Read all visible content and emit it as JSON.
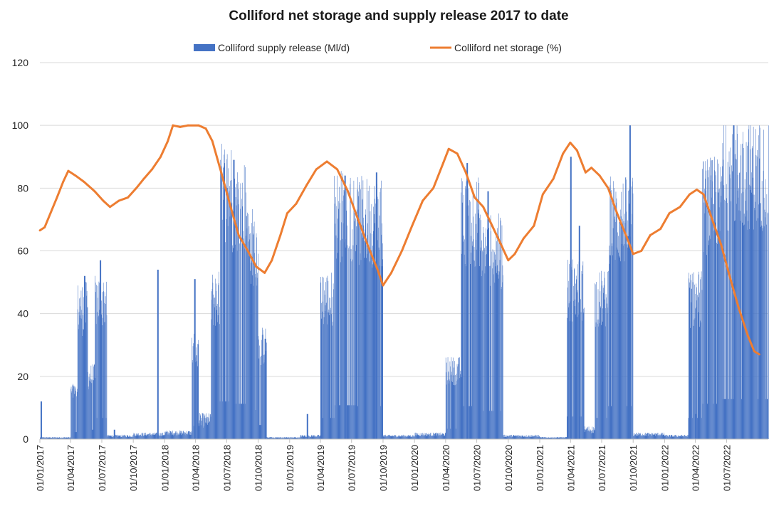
{
  "chart_data": {
    "type": "bar+line",
    "title": "Colliford net storage and supply release 2017 to date",
    "legend": {
      "placement": "top-center",
      "entries": [
        "Colliford supply release (Ml/d)",
        "Colliford net storage (%)"
      ]
    },
    "ylim": [
      0,
      120
    ],
    "y_ticks": [
      "0",
      "20",
      "40",
      "60",
      "80",
      "100",
      "120"
    ],
    "x_range": [
      "2017-01-01",
      "2022-10-31"
    ],
    "x_tick_labels": [
      "01/01/2017",
      "01/04/2017",
      "01/07/2017",
      "01/10/2017",
      "01/01/2018",
      "01/04/2018",
      "01/07/2018",
      "01/10/2018",
      "01/01/2019",
      "01/04/2019",
      "01/07/2019",
      "01/10/2019",
      "01/01/2020",
      "01/04/2020",
      "01/07/2020",
      "01/10/2020",
      "01/01/2021",
      "01/04/2021",
      "01/07/2021",
      "01/10/2021",
      "01/01/2022",
      "01/04/2022",
      "01/07/2022"
    ],
    "grid": true,
    "colors": {
      "release": "#4472c4",
      "storage": "#ed7d31"
    },
    "series": [
      {
        "name": "Colliford supply release (Ml/d)",
        "kind": "bar",
        "periods": [
          {
            "start": "2017-01-01",
            "end": "2017-03-31",
            "value": 0.5
          },
          {
            "start": "2017-04-01",
            "end": "2017-04-20",
            "value": 15
          },
          {
            "start": "2017-04-21",
            "end": "2017-05-20",
            "value": 42
          },
          {
            "start": "2017-05-21",
            "end": "2017-06-10",
            "value": 20
          },
          {
            "start": "2017-06-11",
            "end": "2017-07-15",
            "value": 45
          },
          {
            "start": "2017-07-16",
            "end": "2017-09-30",
            "value": 1
          },
          {
            "start": "2017-10-01",
            "end": "2017-12-31",
            "value": 1.5
          },
          {
            "start": "2018-01-01",
            "end": "2018-03-20",
            "value": 2
          },
          {
            "start": "2018-03-21",
            "end": "2018-04-10",
            "value": 28
          },
          {
            "start": "2018-04-11",
            "end": "2018-05-15",
            "value": 6
          },
          {
            "start": "2018-05-16",
            "end": "2018-06-10",
            "value": 45
          },
          {
            "start": "2018-06-11",
            "end": "2018-07-15",
            "value": 80
          },
          {
            "start": "2018-07-16",
            "end": "2018-08-31",
            "value": 75
          },
          {
            "start": "2018-09-01",
            "end": "2018-09-30",
            "value": 62
          },
          {
            "start": "2018-10-01",
            "end": "2018-10-25",
            "value": 30
          },
          {
            "start": "2018-10-26",
            "end": "2019-01-31",
            "value": 0.5
          },
          {
            "start": "2019-02-01",
            "end": "2019-03-31",
            "value": 1
          },
          {
            "start": "2019-04-01",
            "end": "2019-05-10",
            "value": 45
          },
          {
            "start": "2019-05-11",
            "end": "2019-07-15",
            "value": 72
          },
          {
            "start": "2019-07-16",
            "end": "2019-09-30",
            "value": 70
          },
          {
            "start": "2019-10-01",
            "end": "2019-12-31",
            "value": 1
          },
          {
            "start": "2020-01-01",
            "end": "2020-03-31",
            "value": 1.5
          },
          {
            "start": "2020-04-01",
            "end": "2020-05-15",
            "value": 22
          },
          {
            "start": "2020-05-16",
            "end": "2020-07-10",
            "value": 70
          },
          {
            "start": "2020-07-11",
            "end": "2020-09-15",
            "value": 60
          },
          {
            "start": "2020-09-16",
            "end": "2020-12-31",
            "value": 1
          },
          {
            "start": "2021-01-01",
            "end": "2021-03-20",
            "value": 0.5
          },
          {
            "start": "2021-03-21",
            "end": "2021-05-10",
            "value": 48
          },
          {
            "start": "2021-05-11",
            "end": "2021-06-10",
            "value": 3
          },
          {
            "start": "2021-06-11",
            "end": "2021-07-20",
            "value": 45
          },
          {
            "start": "2021-07-21",
            "end": "2021-09-30",
            "value": 70
          },
          {
            "start": "2021-10-01",
            "end": "2021-12-31",
            "value": 1.5
          },
          {
            "start": "2022-01-01",
            "end": "2022-03-10",
            "value": 1
          },
          {
            "start": "2022-03-11",
            "end": "2022-04-20",
            "value": 45
          },
          {
            "start": "2022-04-21",
            "end": "2022-06-15",
            "value": 75
          },
          {
            "start": "2022-06-16",
            "end": "2022-10-31",
            "value": 85
          }
        ],
        "spikes": [
          {
            "date": "2017-01-03",
            "value": 12
          },
          {
            "date": "2017-05-10",
            "value": 52
          },
          {
            "date": "2017-06-25",
            "value": 57
          },
          {
            "date": "2017-08-05",
            "value": 3
          },
          {
            "date": "2017-12-10",
            "value": 54
          },
          {
            "date": "2018-03-28",
            "value": 51
          },
          {
            "date": "2018-07-20",
            "value": 89
          },
          {
            "date": "2018-10-20",
            "value": 32
          },
          {
            "date": "2019-02-20",
            "value": 8
          },
          {
            "date": "2019-06-10",
            "value": 84
          },
          {
            "date": "2019-09-10",
            "value": 85
          },
          {
            "date": "2020-06-01",
            "value": 88
          },
          {
            "date": "2020-08-01",
            "value": 79
          },
          {
            "date": "2021-03-31",
            "value": 90
          },
          {
            "date": "2021-04-25",
            "value": 68
          },
          {
            "date": "2021-09-20",
            "value": 100
          },
          {
            "date": "2022-03-31",
            "value": 8
          },
          {
            "date": "2022-07-20",
            "value": 100
          }
        ]
      },
      {
        "name": "Colliford net storage (%)",
        "kind": "line",
        "points": [
          {
            "x": "2017-01-01",
            "y": 66.5
          },
          {
            "x": "2017-01-15",
            "y": 67.5
          },
          {
            "x": "2017-02-01",
            "y": 72
          },
          {
            "x": "2017-02-20",
            "y": 77
          },
          {
            "x": "2017-03-10",
            "y": 82
          },
          {
            "x": "2017-03-25",
            "y": 85.5
          },
          {
            "x": "2017-04-15",
            "y": 84
          },
          {
            "x": "2017-05-10",
            "y": 82
          },
          {
            "x": "2017-06-10",
            "y": 79
          },
          {
            "x": "2017-07-05",
            "y": 76
          },
          {
            "x": "2017-07-25",
            "y": 74
          },
          {
            "x": "2017-08-20",
            "y": 76
          },
          {
            "x": "2017-09-15",
            "y": 77
          },
          {
            "x": "2017-10-10",
            "y": 80
          },
          {
            "x": "2017-11-01",
            "y": 83
          },
          {
            "x": "2017-11-25",
            "y": 86
          },
          {
            "x": "2017-12-20",
            "y": 90
          },
          {
            "x": "2018-01-10",
            "y": 95
          },
          {
            "x": "2018-01-25",
            "y": 100
          },
          {
            "x": "2018-02-15",
            "y": 99.5
          },
          {
            "x": "2018-03-10",
            "y": 100
          },
          {
            "x": "2018-04-10",
            "y": 100
          },
          {
            "x": "2018-05-01",
            "y": 99
          },
          {
            "x": "2018-05-20",
            "y": 95
          },
          {
            "x": "2018-06-15",
            "y": 85
          },
          {
            "x": "2018-07-10",
            "y": 75
          },
          {
            "x": "2018-08-05",
            "y": 65
          },
          {
            "x": "2018-09-01",
            "y": 60
          },
          {
            "x": "2018-09-25",
            "y": 55
          },
          {
            "x": "2018-10-20",
            "y": 53
          },
          {
            "x": "2018-11-10",
            "y": 57
          },
          {
            "x": "2018-12-05",
            "y": 65
          },
          {
            "x": "2018-12-25",
            "y": 72
          },
          {
            "x": "2019-01-20",
            "y": 75
          },
          {
            "x": "2019-02-20",
            "y": 81
          },
          {
            "x": "2019-03-20",
            "y": 86
          },
          {
            "x": "2019-04-20",
            "y": 88.5
          },
          {
            "x": "2019-05-20",
            "y": 86
          },
          {
            "x": "2019-06-20",
            "y": 79
          },
          {
            "x": "2019-07-20",
            "y": 70
          },
          {
            "x": "2019-08-20",
            "y": 61
          },
          {
            "x": "2019-09-15",
            "y": 54
          },
          {
            "x": "2019-10-01",
            "y": 49
          },
          {
            "x": "2019-10-25",
            "y": 53
          },
          {
            "x": "2019-11-25",
            "y": 60
          },
          {
            "x": "2019-12-25",
            "y": 68
          },
          {
            "x": "2020-01-25",
            "y": 76
          },
          {
            "x": "2020-02-25",
            "y": 80
          },
          {
            "x": "2020-03-25",
            "y": 88
          },
          {
            "x": "2020-04-10",
            "y": 92.5
          },
          {
            "x": "2020-05-05",
            "y": 91
          },
          {
            "x": "2020-05-30",
            "y": 85
          },
          {
            "x": "2020-06-25",
            "y": 77
          },
          {
            "x": "2020-07-20",
            "y": 74
          },
          {
            "x": "2020-08-15",
            "y": 68
          },
          {
            "x": "2020-09-10",
            "y": 62
          },
          {
            "x": "2020-10-01",
            "y": 57
          },
          {
            "x": "2020-10-20",
            "y": 59
          },
          {
            "x": "2020-11-15",
            "y": 64
          },
          {
            "x": "2020-12-15",
            "y": 68
          },
          {
            "x": "2021-01-10",
            "y": 78
          },
          {
            "x": "2021-02-10",
            "y": 83
          },
          {
            "x": "2021-03-10",
            "y": 91
          },
          {
            "x": "2021-03-31",
            "y": 94.5
          },
          {
            "x": "2021-04-20",
            "y": 92
          },
          {
            "x": "2021-05-15",
            "y": 85
          },
          {
            "x": "2021-06-01",
            "y": 86.5
          },
          {
            "x": "2021-06-25",
            "y": 84
          },
          {
            "x": "2021-07-20",
            "y": 80
          },
          {
            "x": "2021-08-15",
            "y": 72
          },
          {
            "x": "2021-09-10",
            "y": 65
          },
          {
            "x": "2021-10-01",
            "y": 59
          },
          {
            "x": "2021-10-25",
            "y": 60
          },
          {
            "x": "2021-11-20",
            "y": 65
          },
          {
            "x": "2021-12-20",
            "y": 67
          },
          {
            "x": "2022-01-15",
            "y": 72
          },
          {
            "x": "2022-02-15",
            "y": 74
          },
          {
            "x": "2022-03-15",
            "y": 78
          },
          {
            "x": "2022-04-05",
            "y": 79.5
          },
          {
            "x": "2022-04-25",
            "y": 78
          },
          {
            "x": "2022-05-20",
            "y": 70
          },
          {
            "x": "2022-06-15",
            "y": 62
          },
          {
            "x": "2022-07-10",
            "y": 52
          },
          {
            "x": "2022-08-05",
            "y": 42
          },
          {
            "x": "2022-09-01",
            "y": 33
          },
          {
            "x": "2022-09-20",
            "y": 28
          },
          {
            "x": "2022-10-05",
            "y": 27
          }
        ]
      }
    ]
  }
}
